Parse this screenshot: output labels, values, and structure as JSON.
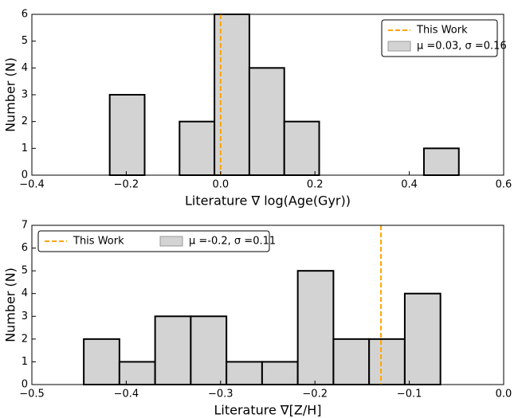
{
  "chart_data": [
    {
      "type": "histogram",
      "xlabel": "Literature ∇ log(Age(Gyr))",
      "ylabel": "Number (N)",
      "bins": [
        -0.235,
        -0.161,
        -0.087,
        -0.013,
        0.061,
        0.135,
        0.209,
        0.283,
        0.357,
        0.431,
        0.505
      ],
      "series": [
        {
          "name": "μ =0.03, σ =0.16",
          "color": "#d3d3d3",
          "edgecolor": "#000000",
          "values": [
            3,
            0,
            2,
            6,
            4,
            2,
            0,
            0,
            0,
            1
          ]
        }
      ],
      "vlines": [
        {
          "name": "This Work",
          "x": 0,
          "color": "#ffa500"
        }
      ],
      "xlim": [
        -0.4,
        0.6
      ],
      "ylim": [
        0,
        6
      ],
      "xticks": [
        {
          "value": -0.4,
          "label": "−0.4"
        },
        {
          "value": -0.2,
          "label": "−0.2"
        },
        {
          "value": 0,
          "label": "0.0"
        },
        0.2,
        0.4,
        0.6
      ],
      "yticks": [
        0,
        1,
        2,
        3,
        4,
        5,
        6
      ],
      "legend": "upper right",
      "legend_columns": 1
    },
    {
      "type": "histogram",
      "xlabel": "Literature ∇[Z/H]",
      "ylabel": "Number (N)",
      "bins": [
        -0.445,
        -0.4072,
        -0.3694,
        -0.3316,
        -0.2938,
        -0.256,
        -0.2182,
        -0.1804,
        -0.1426,
        -0.1048,
        -0.067
      ],
      "series": [
        {
          "name": "μ =-0.2, σ =0.11",
          "color": "#d3d3d3",
          "edgecolor": "#000000",
          "values": [
            2,
            1,
            3,
            3,
            1,
            1,
            5,
            2,
            2,
            4
          ]
        }
      ],
      "vlines": [
        {
          "name": "This Work",
          "x": -0.13,
          "color": "#ffa500"
        }
      ],
      "xlim": [
        -0.5,
        0
      ],
      "ylim": [
        0,
        7
      ],
      "xticks": [
        {
          "value": -0.5,
          "label": "−0.5"
        },
        {
          "value": -0.4,
          "label": "−0.4"
        },
        {
          "value": -0.3,
          "label": "−0.3"
        },
        {
          "value": -0.2,
          "label": "−0.2"
        },
        {
          "value": -0.1,
          "label": "−0.1"
        },
        {
          "value": 0,
          "label": "0.0"
        }
      ],
      "yticks": [
        0,
        1,
        2,
        3,
        4,
        5,
        6,
        7
      ],
      "legend": "upper left",
      "legend_columns": 2
    }
  ]
}
